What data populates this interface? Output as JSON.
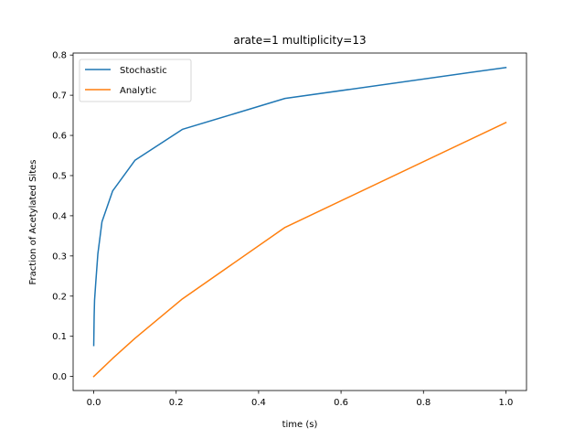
{
  "chart_data": {
    "type": "line",
    "title": "arate=1 multiplicity=13",
    "xlabel": "time (s)",
    "ylabel": "Fraction of Acetylated Sites",
    "xlim": [
      -0.05,
      1.05
    ],
    "ylim": [
      -0.035,
      0.805
    ],
    "xticks": [
      0.0,
      0.2,
      0.4,
      0.6,
      0.8,
      1.0
    ],
    "xtick_labels": [
      "0.0",
      "0.2",
      "0.4",
      "0.6",
      "0.8",
      "1.0"
    ],
    "yticks": [
      0.0,
      0.1,
      0.2,
      0.3,
      0.4,
      0.5,
      0.6,
      0.7,
      0.8
    ],
    "ytick_labels": [
      "0.0",
      "0.1",
      "0.2",
      "0.3",
      "0.4",
      "0.5",
      "0.6",
      "0.7",
      "0.8"
    ],
    "grid": false,
    "legend_position": "top-left",
    "series": [
      {
        "name": "Stochastic",
        "color": "#1f77b4",
        "x": [
          0.0,
          0.001,
          0.002,
          0.005,
          0.01,
          0.02,
          0.046,
          0.1,
          0.215,
          0.464,
          1.0
        ],
        "y": [
          0.077,
          0.15,
          0.19,
          0.235,
          0.305,
          0.385,
          0.462,
          0.538,
          0.615,
          0.692,
          0.769
        ]
      },
      {
        "name": "Analytic",
        "color": "#ff7f0e",
        "x": [
          0.0,
          0.046,
          0.1,
          0.215,
          0.464,
          1.0
        ],
        "y": [
          0.0,
          0.045,
          0.095,
          0.193,
          0.371,
          0.632
        ]
      }
    ]
  }
}
